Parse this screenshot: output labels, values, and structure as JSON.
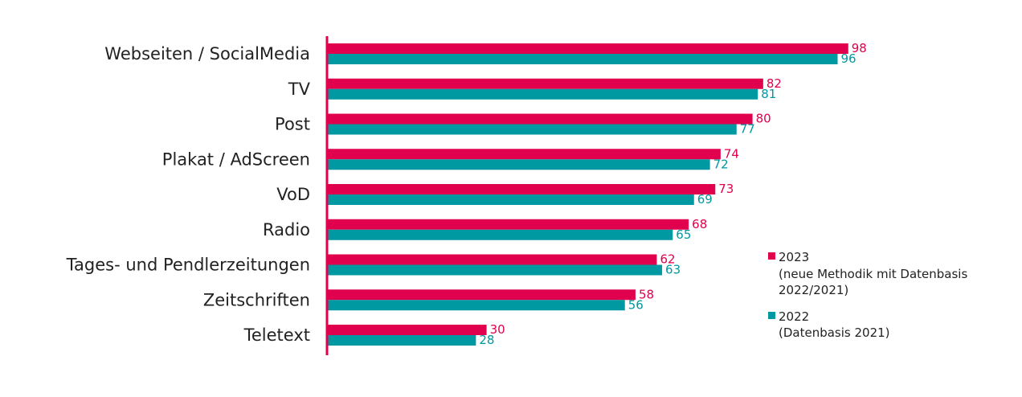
{
  "chart_data": {
    "type": "bar",
    "orientation": "horizontal",
    "categories": [
      "Webseiten / SocialMedia",
      "TV",
      "Post",
      "Plakat / AdScreen",
      "VoD",
      "Radio",
      "Tages- und Pendlerzeitungen",
      "Zeitschriften",
      "Teletext"
    ],
    "series": [
      {
        "name": "2023",
        "values": [
          98,
          82,
          80,
          74,
          73,
          68,
          62,
          58,
          30
        ],
        "color": "#e0004d"
      },
      {
        "name": "2022",
        "values": [
          96,
          81,
          77,
          72,
          69,
          65,
          63,
          56,
          28
        ],
        "color": "#0098a1"
      }
    ],
    "legend": {
      "position": "right",
      "items": [
        {
          "line1": "2023",
          "line2": "(neue Methodik mit Datenbasis",
          "line3": "2022/2021)",
          "color": "#e0004d"
        },
        {
          "line1": "2022",
          "line2": "(Datenbasis 2021)",
          "line3": "",
          "color": "#0098a1"
        }
      ]
    },
    "axis_color": "#e0004d",
    "xlim": [
      0,
      100
    ],
    "grid": false
  }
}
